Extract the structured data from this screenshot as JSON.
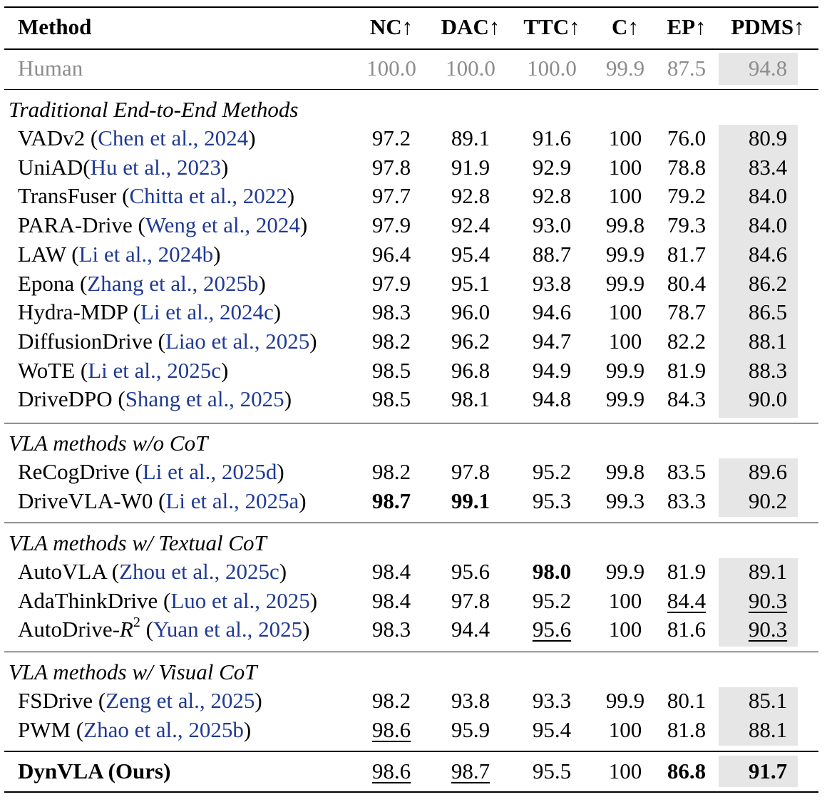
{
  "columns": [
    "Method",
    "NC↑",
    "DAC↑",
    "TTC↑",
    "C↑",
    "EP↑",
    "PDMS↑"
  ],
  "human": {
    "name": "Human",
    "values": [
      "100.0",
      "100.0",
      "100.0",
      "99.9",
      "87.5",
      "94.8"
    ]
  },
  "groups": [
    {
      "title": "Traditional End-to-End Methods",
      "rows": [
        {
          "name": "VADv2",
          "sep": " ",
          "cite": "Chen et al., 2024",
          "values": [
            "97.2",
            "89.1",
            "91.6",
            "100",
            "76.0",
            "80.9"
          ]
        },
        {
          "name": "UniAD",
          "sep": "",
          "cite": "Hu et al., 2023",
          "values": [
            "97.8",
            "91.9",
            "92.9",
            "100",
            "78.8",
            "83.4"
          ]
        },
        {
          "name": "TransFuser",
          "sep": " ",
          "cite": "Chitta et al., 2022",
          "values": [
            "97.7",
            "92.8",
            "92.8",
            "100",
            "79.2",
            "84.0"
          ]
        },
        {
          "name": "PARA-Drive",
          "sep": " ",
          "cite": "Weng et al., 2024",
          "values": [
            "97.9",
            "92.4",
            "93.0",
            "99.8",
            "79.3",
            "84.0"
          ]
        },
        {
          "name": "LAW",
          "sep": " ",
          "cite": "Li et al., 2024b",
          "values": [
            "96.4",
            "95.4",
            "88.7",
            "99.9",
            "81.7",
            "84.6"
          ]
        },
        {
          "name": "Epona",
          "sep": " ",
          "cite": "Zhang et al., 2025b",
          "values": [
            "97.9",
            "95.1",
            "93.8",
            "99.9",
            "80.4",
            "86.2"
          ]
        },
        {
          "name": "Hydra-MDP",
          "sep": " ",
          "cite": "Li et al., 2024c",
          "values": [
            "98.3",
            "96.0",
            "94.6",
            "100",
            "78.7",
            "86.5"
          ]
        },
        {
          "name": "DiffusionDrive",
          "sep": " ",
          "cite": "Liao et al., 2025",
          "values": [
            "98.2",
            "96.2",
            "94.7",
            "100",
            "82.2",
            "88.1"
          ]
        },
        {
          "name": "WoTE",
          "sep": " ",
          "cite": "Li et al., 2025c",
          "values": [
            "98.5",
            "96.8",
            "94.9",
            "99.9",
            "81.9",
            "88.3"
          ]
        },
        {
          "name": "DriveDPO",
          "sep": " ",
          "cite": "Shang et al., 2025",
          "values": [
            "98.5",
            "98.1",
            "94.8",
            "99.9",
            "84.3",
            "90.0"
          ]
        }
      ]
    },
    {
      "title": "VLA methods w/o CoT",
      "rows": [
        {
          "name": "ReCogDrive",
          "sep": " ",
          "cite": "Li et al., 2025d",
          "values": [
            "98.2",
            "97.8",
            "95.2",
            "99.8",
            "83.5",
            "89.6"
          ]
        },
        {
          "name": "DriveVLA-W0",
          "sep": " ",
          "cite": "Li et al., 2025a",
          "values": [
            "98.7",
            "99.1",
            "95.3",
            "99.3",
            "83.3",
            "90.2"
          ]
        }
      ]
    },
    {
      "title": "VLA methods w/ Textual CoT",
      "rows": [
        {
          "name": "AutoVLA",
          "sep": " ",
          "cite": "Zhou et al., 2025c",
          "values": [
            "98.4",
            "95.6",
            "98.0",
            "99.9",
            "81.9",
            "89.1"
          ]
        },
        {
          "name": "AdaThinkDrive",
          "sep": " ",
          "cite": "Luo et al., 2025",
          "values": [
            "98.4",
            "97.8",
            "95.2",
            "100",
            "84.4",
            "90.3"
          ]
        },
        {
          "name": "AutoDrive-",
          "math": "R",
          "sup": "2",
          "sep": " ",
          "cite": "Yuan et al., 2025",
          "values": [
            "98.3",
            "94.4",
            "95.6",
            "100",
            "81.6",
            "90.3"
          ]
        }
      ]
    },
    {
      "title": "VLA methods w/ Visual CoT",
      "rows": [
        {
          "name": "FSDrive",
          "sep": " ",
          "cite": "Zeng et al., 2025",
          "values": [
            "98.2",
            "93.8",
            "93.3",
            "99.9",
            "80.1",
            "85.1"
          ]
        },
        {
          "name": "PWM",
          "sep": " ",
          "cite": "Zhao et al., 2025b",
          "values": [
            "98.6",
            "95.9",
            "95.4",
            "100",
            "81.8",
            "88.1"
          ]
        }
      ]
    }
  ],
  "ours": {
    "name": "DynVLA (Ours)",
    "values": [
      "98.6",
      "98.7",
      "95.5",
      "100",
      "86.8",
      "91.7"
    ]
  },
  "emphasis": {
    "bold": [
      "ours.4",
      "ours.5",
      "groups.1.rows.1.0",
      "groups.1.rows.1.1",
      "groups.2.rows.0.2"
    ],
    "underline": [
      "ours.0",
      "ours.1",
      "groups.3.rows.1.0",
      "groups.2.rows.1.4",
      "groups.2.rows.1.5",
      "groups.2.rows.2.2",
      "groups.2.rows.2.5"
    ]
  }
}
